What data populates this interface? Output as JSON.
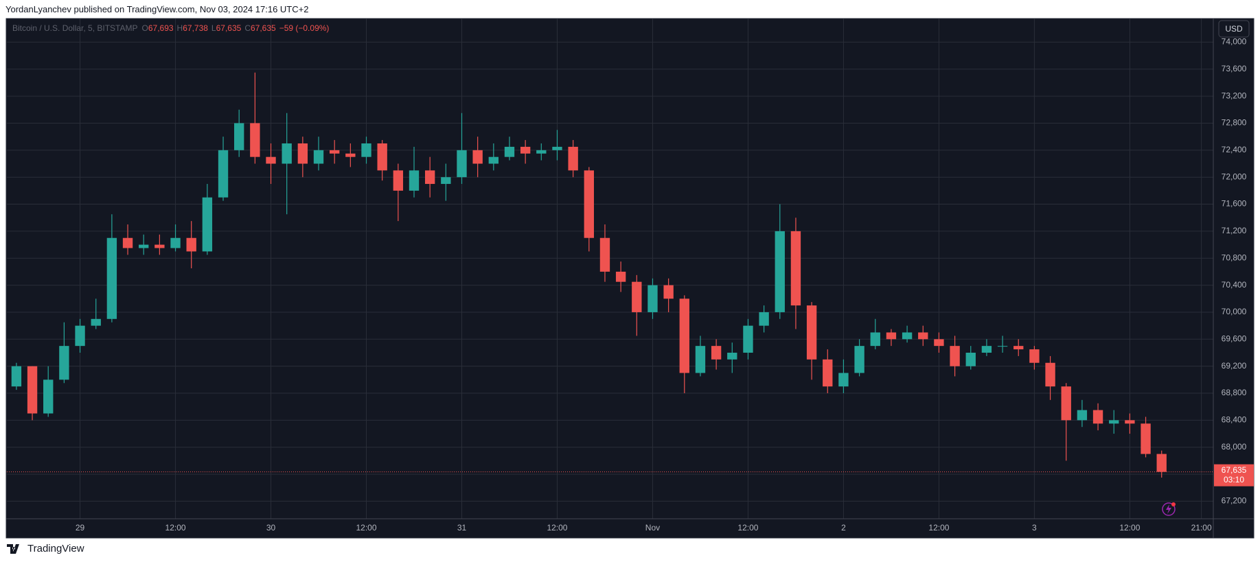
{
  "header": {
    "publisher": "YordanLyanchev published on TradingView.com, Nov 03, 2024 17:16 UTC+2"
  },
  "footer": {
    "brand": "TradingView"
  },
  "chart_data": {
    "type": "candlestick",
    "symbol": "Bitcoin / U.S. Dollar, 5, BITSTAMP",
    "legend_ohlc": [
      {
        "key": "O",
        "value": "67,693"
      },
      {
        "key": "H",
        "value": "67,738"
      },
      {
        "key": "L",
        "value": "67,635"
      },
      {
        "key": "C",
        "value": "67,635"
      }
    ],
    "change": "−59 (−0.09%)",
    "currency": "USD",
    "last_price": {
      "value": 67635,
      "label": "67,635"
    },
    "countdown": "03:10",
    "up_color": "#26a69a",
    "down_color": "#ef5350",
    "grid": true,
    "x": [
      -8,
      -6,
      -4,
      -2,
      0,
      2,
      4,
      6,
      8,
      10,
      12,
      14,
      16,
      18,
      20,
      22,
      24,
      26,
      28,
      30,
      32,
      34,
      36,
      38,
      40,
      42,
      44,
      46,
      48,
      50,
      52,
      54,
      56,
      58,
      60,
      62,
      64,
      66,
      68,
      70,
      72,
      74,
      76,
      78,
      80,
      82,
      84,
      86,
      88,
      90,
      92,
      94,
      96,
      98,
      100,
      102,
      104,
      106,
      108,
      110,
      112,
      114,
      116,
      118,
      120,
      122,
      124,
      126,
      128,
      130,
      132,
      134,
      136
    ],
    "open": [
      68900,
      69200,
      68500,
      69000,
      69500,
      69800,
      69900,
      71100,
      70950,
      71000,
      70950,
      71100,
      70900,
      71700,
      72400,
      72800,
      72300,
      72200,
      72500,
      72200,
      72400,
      72350,
      72300,
      72500,
      72100,
      71800,
      72100,
      71900,
      72000,
      72400,
      72200,
      72300,
      72450,
      72350,
      72400,
      72450,
      72100,
      71100,
      70600,
      70450,
      70000,
      70400,
      70200,
      69100,
      69500,
      69300,
      69400,
      69800,
      70000,
      71200,
      70100,
      69300,
      68900,
      69100,
      69500,
      69700,
      69600,
      69700,
      69600,
      69500,
      69200,
      69400,
      69500,
      69500,
      69450,
      69250,
      68900,
      68400,
      68550,
      68350,
      68400,
      68350,
      67900
    ],
    "high": [
      69250,
      69200,
      69200,
      69850,
      69900,
      70200,
      71450,
      71300,
      71150,
      71150,
      71300,
      71350,
      71900,
      72600,
      73000,
      73550,
      72500,
      72950,
      72600,
      72600,
      72550,
      72500,
      72600,
      72550,
      72200,
      72450,
      72300,
      72200,
      72950,
      72600,
      72500,
      72600,
      72550,
      72500,
      72700,
      72550,
      72150,
      71300,
      70750,
      70550,
      70500,
      70500,
      70250,
      69650,
      69600,
      69550,
      69900,
      70100,
      71600,
      71400,
      70150,
      69450,
      69300,
      69600,
      69900,
      69750,
      69800,
      69800,
      69700,
      69650,
      69500,
      69600,
      69650,
      69600,
      69500,
      69350,
      68950,
      68700,
      68650,
      68550,
      68500,
      68450,
      67950
    ],
    "low": [
      68850,
      68400,
      68450,
      68950,
      69400,
      69750,
      69850,
      70850,
      70850,
      70850,
      70900,
      70650,
      70850,
      71650,
      72300,
      72200,
      71900,
      71450,
      72000,
      72100,
      72200,
      72150,
      72200,
      71950,
      71350,
      71700,
      71700,
      71650,
      71900,
      72000,
      72100,
      72250,
      72200,
      72250,
      72250,
      72000,
      70900,
      70450,
      70300,
      69650,
      69900,
      70000,
      68800,
      69050,
      69150,
      69100,
      69300,
      69700,
      69900,
      69750,
      69000,
      68800,
      68800,
      69050,
      69450,
      69500,
      69550,
      69500,
      69400,
      69050,
      69150,
      69350,
      69400,
      69350,
      69150,
      68700,
      67800,
      68300,
      68250,
      68200,
      68200,
      67850,
      67550
    ],
    "close": [
      69200,
      68500,
      69000,
      69500,
      69800,
      69900,
      71100,
      70950,
      71000,
      70950,
      71100,
      70900,
      71700,
      72400,
      72800,
      72300,
      72200,
      72500,
      72200,
      72400,
      72350,
      72300,
      72500,
      72100,
      71800,
      72100,
      71900,
      72000,
      72400,
      72200,
      72300,
      72450,
      72350,
      72400,
      72450,
      72100,
      71100,
      70600,
      70450,
      70000,
      70400,
      70200,
      69100,
      69500,
      69300,
      69400,
      69800,
      70000,
      71200,
      70100,
      69300,
      68900,
      69100,
      69500,
      69700,
      69600,
      69700,
      69600,
      69500,
      69200,
      69400,
      69500,
      69500,
      69450,
      69250,
      68900,
      68400,
      68550,
      68350,
      68400,
      68350,
      67900,
      67635
    ],
    "xlim": [
      -9.2,
      142.5
    ],
    "xticks": [
      {
        "value": 0,
        "label": "29"
      },
      {
        "value": 12,
        "label": "12:00"
      },
      {
        "value": 24,
        "label": "30"
      },
      {
        "value": 36,
        "label": "12:00"
      },
      {
        "value": 48,
        "label": "31"
      },
      {
        "value": 60,
        "label": "12:00"
      },
      {
        "value": 72,
        "label": "Nov"
      },
      {
        "value": 84,
        "label": "12:00"
      },
      {
        "value": 96,
        "label": "2"
      },
      {
        "value": 108,
        "label": "12:00"
      },
      {
        "value": 120,
        "label": "3"
      },
      {
        "value": 132,
        "label": "12:00"
      },
      {
        "value": 141,
        "label": "21:00"
      }
    ],
    "ylim": [
      66940,
      74350
    ],
    "yticks": [
      {
        "value": 67200,
        "label": "67,200"
      },
      {
        "value": 67600,
        "label": "67,600"
      },
      {
        "value": 68000,
        "label": "68,000"
      },
      {
        "value": 68400,
        "label": "68,400"
      },
      {
        "value": 68800,
        "label": "68,800"
      },
      {
        "value": 69200,
        "label": "69,200"
      },
      {
        "value": 69600,
        "label": "69,600"
      },
      {
        "value": 70000,
        "label": "70,000"
      },
      {
        "value": 70400,
        "label": "70,400"
      },
      {
        "value": 70800,
        "label": "70,800"
      },
      {
        "value": 71200,
        "label": "71,200"
      },
      {
        "value": 71600,
        "label": "71,600"
      },
      {
        "value": 72000,
        "label": "72,000"
      },
      {
        "value": 72400,
        "label": "72,400"
      },
      {
        "value": 72800,
        "label": "72,800"
      },
      {
        "value": 73200,
        "label": "73,200"
      },
      {
        "value": 73600,
        "label": "73,600"
      },
      {
        "value": 74000,
        "label": "74,000"
      }
    ]
  }
}
